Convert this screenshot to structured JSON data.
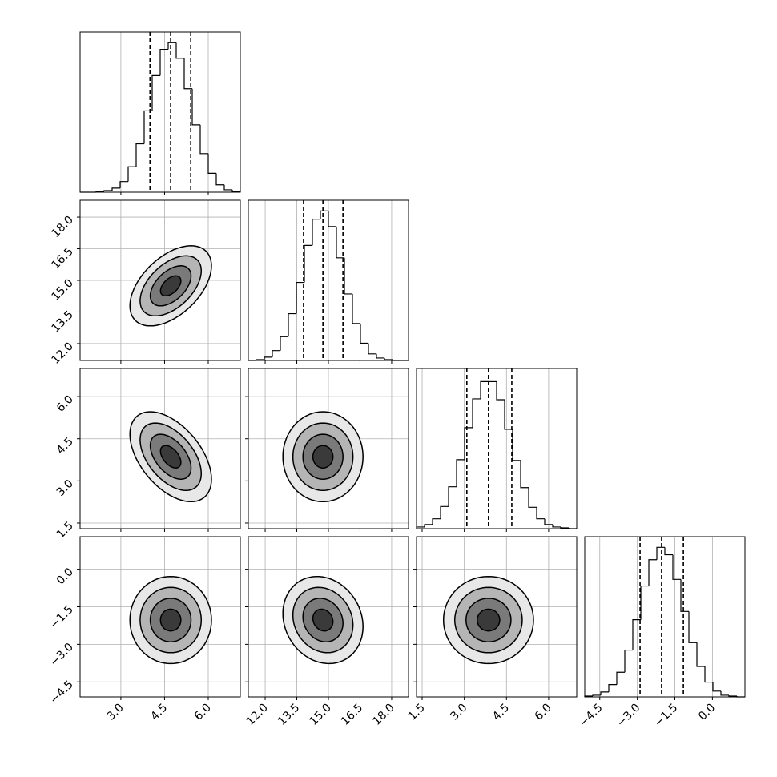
{
  "chart_data": {
    "type": "corner",
    "grid": true,
    "line_color": "#000000",
    "levels": [
      0.5,
      1.0,
      1.5,
      2.0
    ],
    "shades": [
      "#3a3a3a",
      "#7a7a7a",
      "#b5b5b5",
      "#e8e8e8"
    ],
    "parameters": [
      {
        "xlim": [
          1.6,
          7.1
        ],
        "ticks": [
          {
            "value": 3,
            "label": "3.0"
          },
          {
            "value": 4.5,
            "label": "4.5"
          },
          {
            "value": 6,
            "label": "6.0"
          }
        ],
        "mean": 4.71,
        "sd": 0.7,
        "quantiles": [
          4.0,
          4.71,
          5.4
        ],
        "ylim": [
          0,
          195
        ],
        "bins": [
          1.6,
          1.875,
          2.15,
          2.425,
          2.7,
          2.975,
          3.25,
          3.525,
          3.8,
          4.075,
          4.35,
          4.625,
          4.9,
          5.175,
          5.45,
          5.725,
          6.0,
          6.275,
          6.55,
          6.825,
          7.1
        ],
        "counts": [
          0,
          0,
          1,
          2,
          5,
          13,
          31,
          59,
          99,
          142,
          174,
          182,
          163,
          126,
          82,
          47,
          23,
          9,
          3,
          1
        ]
      },
      {
        "xlim": [
          11.2,
          18.8
        ],
        "ticks": [
          {
            "value": 12,
            "label": "12.0"
          },
          {
            "value": 13.5,
            "label": "13.5"
          },
          {
            "value": 15,
            "label": "15.0"
          },
          {
            "value": 16.5,
            "label": "16.5"
          },
          {
            "value": 18,
            "label": "18.0"
          }
        ],
        "mean": 14.74,
        "sd": 0.95,
        "quantiles": [
          13.82,
          14.74,
          15.69
        ],
        "ylim": [
          0,
          195
        ],
        "bins": [
          11.2,
          11.58,
          11.96,
          12.34,
          12.72,
          13.1,
          13.48,
          13.86,
          14.24,
          14.62,
          15.0,
          15.38,
          15.76,
          16.14,
          16.52,
          16.9,
          17.28,
          17.66,
          18.04,
          18.42,
          18.8
        ],
        "counts": [
          0,
          1,
          4,
          12,
          29,
          57,
          95,
          140,
          172,
          182,
          163,
          125,
          81,
          45,
          21,
          8,
          3,
          1,
          0,
          0
        ]
      },
      {
        "xlim": [
          1.3,
          7.0
        ],
        "ticks": [
          {
            "value": 1.5,
            "label": "1.5"
          },
          {
            "value": 3,
            "label": "3.0"
          },
          {
            "value": 4.5,
            "label": "4.5"
          },
          {
            "value": 6,
            "label": "6.0"
          }
        ],
        "mean": 3.86,
        "sd": 0.8,
        "quantiles": [
          3.09,
          3.86,
          4.69
        ],
        "ylim": [
          0,
          195
        ],
        "bins": [
          1.3,
          1.585,
          1.87,
          2.155,
          2.44,
          2.725,
          3.01,
          3.295,
          3.58,
          3.865,
          4.15,
          4.435,
          4.72,
          5.005,
          5.29,
          5.575,
          5.86,
          6.145,
          6.43,
          6.715,
          7.0
        ],
        "counts": [
          2,
          5,
          12,
          27,
          51,
          84,
          123,
          158,
          179,
          179,
          157,
          121,
          83,
          50,
          26,
          12,
          5,
          2,
          1,
          0
        ]
      },
      {
        "xlim": [
          -5.1,
          1.3
        ],
        "ticks": [
          {
            "value": -4.5,
            "label": "−4.5"
          },
          {
            "value": -3,
            "label": "−3.0"
          },
          {
            "value": -1.5,
            "label": "−1.5"
          },
          {
            "value": 0,
            "label": "0.0"
          }
        ],
        "mean": -2.03,
        "sd": 0.87,
        "quantiles": [
          -2.89,
          -2.03,
          -1.16
        ],
        "ylim": [
          0,
          195
        ],
        "bins": [
          -5.1,
          -4.78,
          -4.46,
          -4.14,
          -3.82,
          -3.5,
          -3.18,
          -2.86,
          -2.54,
          -2.22,
          -1.9,
          -1.58,
          -1.26,
          -0.94,
          -0.62,
          -0.3,
          0.02,
          0.34,
          0.66,
          0.98,
          1.3
        ],
        "counts": [
          1,
          2,
          6,
          15,
          30,
          57,
          94,
          135,
          167,
          182,
          173,
          143,
          104,
          66,
          37,
          18,
          7,
          2,
          1,
          0
        ]
      }
    ],
    "pairs": [
      {
        "row": 1,
        "col": 0,
        "corr": 0.5
      },
      {
        "row": 2,
        "col": 0,
        "corr": -0.5
      },
      {
        "row": 2,
        "col": 1,
        "corr": 0.0
      },
      {
        "row": 3,
        "col": 0,
        "corr": 0.0
      },
      {
        "row": 3,
        "col": 1,
        "corr": -0.15
      },
      {
        "row": 3,
        "col": 2,
        "corr": 0.0
      }
    ]
  }
}
